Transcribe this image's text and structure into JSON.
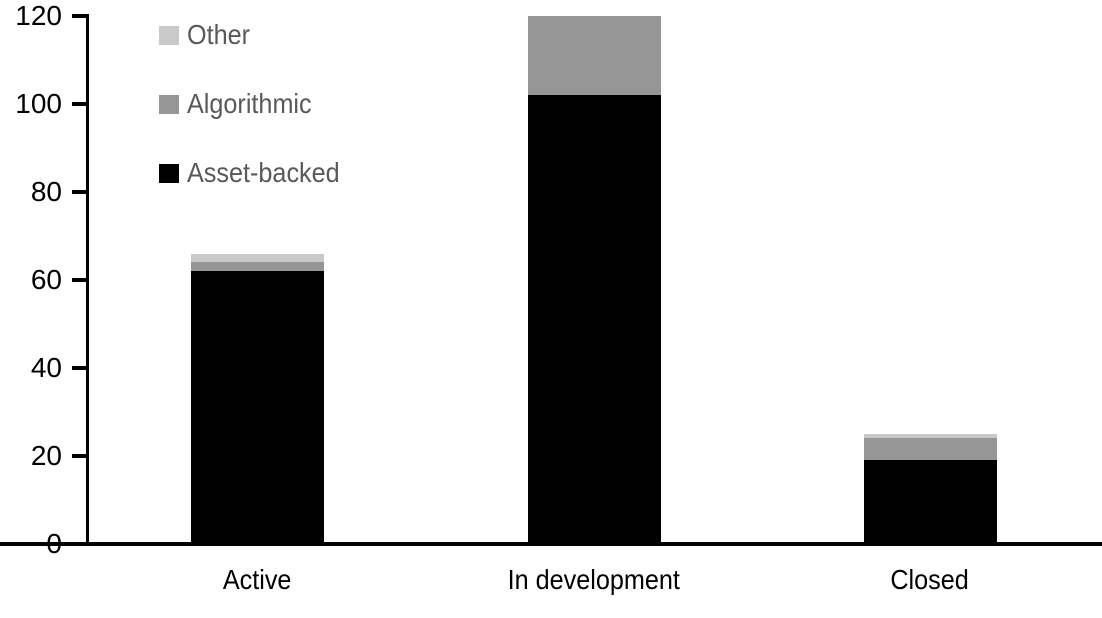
{
  "chart_data": {
    "type": "bar",
    "stacked": true,
    "title": "",
    "xlabel": "",
    "ylabel": "",
    "categories": [
      "Active",
      "In development",
      "Closed"
    ],
    "series": [
      {
        "name": "Asset-backed",
        "color": "#000000",
        "values": [
          62,
          102,
          19
        ]
      },
      {
        "name": "Algorithmic",
        "color": "#969696",
        "values": [
          2,
          18,
          5
        ]
      },
      {
        "name": "Other",
        "color": "#c9c9c9",
        "values": [
          2,
          0,
          1
        ]
      }
    ],
    "totals": [
      66,
      120,
      25
    ],
    "ylim": [
      0,
      120
    ],
    "y_ticks": [
      "0",
      "20",
      "40",
      "60",
      "80",
      "100",
      "120"
    ],
    "grid": false,
    "legend": {
      "position": "top-left",
      "entries": [
        "Other",
        "Algorithmic",
        "Asset-backed"
      ]
    }
  },
  "colors": {
    "background": "#ffffff",
    "axis": "#000000",
    "tick_label_text": "#000000",
    "category_label_text": "#000000",
    "legend_text": "#595959"
  }
}
